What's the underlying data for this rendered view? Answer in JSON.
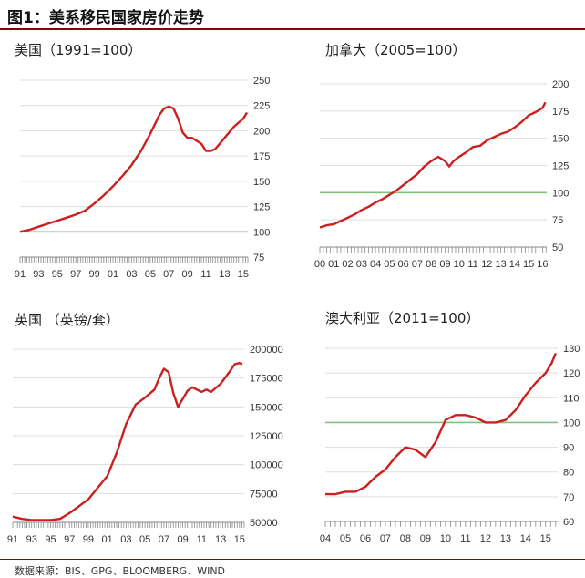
{
  "figure": {
    "title": "图1：美系移民国家房价走势",
    "source": "数据来源：BIS、GPG、BLOOMBERG、WIND"
  },
  "colors": {
    "series": "#cc1f1f",
    "reference": "#7cc47c",
    "axis": "#888888",
    "grid": "#dddddd"
  },
  "chart_data": [
    {
      "type": "line",
      "title": "美国（1991=100）",
      "xlabel": "",
      "ylabel": "",
      "x_tick_labels": [
        "91",
        "93",
        "95",
        "97",
        "99",
        "01",
        "03",
        "05",
        "07",
        "09",
        "11",
        "13",
        "15"
      ],
      "x_tick_values": [
        1991,
        1993,
        1995,
        1997,
        1999,
        2001,
        2003,
        2005,
        2007,
        2009,
        2011,
        2013,
        2015
      ],
      "xlim": [
        1991,
        2015.5
      ],
      "y_tick_labels": [
        "75",
        "100",
        "125",
        "150",
        "175",
        "200",
        "225",
        "250"
      ],
      "y_tick_values": [
        75,
        100,
        125,
        150,
        175,
        200,
        225,
        250
      ],
      "ylim": [
        75,
        250
      ],
      "grid": true,
      "reference_line": 100,
      "series": [
        {
          "x": [
            1991,
            1992,
            1993,
            1994,
            1995,
            1996,
            1997,
            1998,
            1999,
            2000,
            2001,
            2002,
            2003,
            2004,
            2005,
            2006,
            2006.5,
            2007,
            2007.5,
            2008,
            2008.5,
            2009,
            2009.5,
            2010,
            2010.5,
            2011,
            2011.5,
            2012,
            2013,
            2014,
            2015,
            2015.4
          ],
          "y": [
            100,
            102,
            105,
            108,
            111,
            114,
            117,
            121,
            128,
            136,
            145,
            155,
            166,
            180,
            197,
            216,
            222,
            224,
            222,
            212,
            198,
            193,
            193,
            190,
            187,
            180,
            180,
            182,
            193,
            204,
            212,
            218
          ]
        }
      ]
    },
    {
      "type": "line",
      "title": "加拿大（2005=100）",
      "xlabel": "",
      "ylabel": "",
      "x_tick_labels": [
        "00",
        "01",
        "02",
        "03",
        "04",
        "05",
        "06",
        "07",
        "08",
        "09",
        "10",
        "11",
        "12",
        "13",
        "14",
        "15",
        "16"
      ],
      "x_tick_values": [
        2000,
        2001,
        2002,
        2003,
        2004,
        2005,
        2006,
        2007,
        2008,
        2009,
        2010,
        2011,
        2012,
        2013,
        2014,
        2015,
        2016
      ],
      "xlim": [
        2000,
        2016.3
      ],
      "y_tick_labels": [
        "50",
        "75",
        "100",
        "125",
        "150",
        "175",
        "200"
      ],
      "y_tick_values": [
        50,
        75,
        100,
        125,
        150,
        175,
        200
      ],
      "ylim": [
        50,
        200
      ],
      "grid": true,
      "reference_line": 100,
      "series": [
        {
          "x": [
            2000,
            2000.5,
            2001,
            2001.5,
            2002,
            2002.5,
            2003,
            2003.5,
            2004,
            2004.5,
            2005,
            2005.5,
            2006,
            2006.5,
            2007,
            2007.5,
            2008,
            2008.5,
            2009,
            2009.3,
            2009.6,
            2010,
            2010.5,
            2011,
            2011.5,
            2012,
            2012.5,
            2013,
            2013.5,
            2014,
            2014.5,
            2015,
            2015.5,
            2016,
            2016.2
          ],
          "y": [
            68,
            70,
            71,
            74,
            77,
            80,
            84,
            87,
            91,
            94,
            98,
            102,
            107,
            112,
            117,
            124,
            129,
            133,
            129,
            124,
            129,
            133,
            137,
            142,
            143,
            148,
            151,
            154,
            156,
            160,
            165,
            171,
            174,
            178,
            183
          ]
        }
      ]
    },
    {
      "type": "line",
      "title": "英国 （英镑/套）",
      "xlabel": "",
      "ylabel": "",
      "x_tick_labels": [
        "91",
        "93",
        "95",
        "97",
        "99",
        "01",
        "03",
        "05",
        "07",
        "09",
        "11",
        "13",
        "15"
      ],
      "x_tick_values": [
        1991,
        1993,
        1995,
        1997,
        1999,
        2001,
        2003,
        2005,
        2007,
        2009,
        2011,
        2013,
        2015
      ],
      "xlim": [
        1991,
        2015.5
      ],
      "y_tick_labels": [
        "50000",
        "75000",
        "100000",
        "125000",
        "150000",
        "175000",
        "200000"
      ],
      "y_tick_values": [
        50000,
        75000,
        100000,
        125000,
        150000,
        175000,
        200000
      ],
      "ylim": [
        50000,
        200000
      ],
      "grid": true,
      "series": [
        {
          "x": [
            1991,
            1992,
            1993,
            1994,
            1995,
            1996,
            1997,
            1998,
            1999,
            2000,
            2001,
            2002,
            2003,
            2004,
            2005,
            2006,
            2006.5,
            2007,
            2007.5,
            2008,
            2008.5,
            2009,
            2009.5,
            2010,
            2011,
            2011.5,
            2012,
            2013,
            2014,
            2014.5,
            2015,
            2015.3
          ],
          "y": [
            55000,
            53000,
            52000,
            52000,
            52000,
            53000,
            58000,
            64000,
            70000,
            80000,
            90000,
            110000,
            135000,
            152000,
            158000,
            165000,
            175000,
            183000,
            180000,
            162000,
            150000,
            157000,
            164000,
            167000,
            163000,
            165000,
            163000,
            170000,
            181000,
            187000,
            188000,
            187000
          ]
        }
      ]
    },
    {
      "type": "line",
      "title": "澳大利亚（2011=100）",
      "xlabel": "",
      "ylabel": "",
      "x_tick_labels": [
        "04",
        "05",
        "06",
        "07",
        "08",
        "09",
        "10",
        "11",
        "12",
        "13",
        "14",
        "15"
      ],
      "x_tick_values": [
        2004,
        2005,
        2006,
        2007,
        2008,
        2009,
        2010,
        2011,
        2012,
        2013,
        2014,
        2015
      ],
      "xlim": [
        2004,
        2015.6
      ],
      "y_tick_labels": [
        "60",
        "70",
        "80",
        "90",
        "100",
        "110",
        "120",
        "130"
      ],
      "y_tick_values": [
        60,
        70,
        80,
        90,
        100,
        110,
        120,
        130
      ],
      "ylim": [
        60,
        130
      ],
      "grid": true,
      "reference_line": 100,
      "series": [
        {
          "x": [
            2004,
            2004.5,
            2005,
            2005.5,
            2006,
            2006.5,
            2007,
            2007.5,
            2008,
            2008.5,
            2009,
            2009.5,
            2010,
            2010.5,
            2011,
            2011.5,
            2012,
            2012.5,
            2013,
            2013.5,
            2014,
            2014.5,
            2015,
            2015.3,
            2015.5
          ],
          "y": [
            71,
            71,
            72,
            72,
            74,
            78,
            81,
            86,
            90,
            89,
            86,
            92,
            101,
            103,
            103,
            102,
            100,
            100,
            101,
            105,
            111,
            116,
            120,
            124,
            128
          ]
        }
      ]
    }
  ]
}
